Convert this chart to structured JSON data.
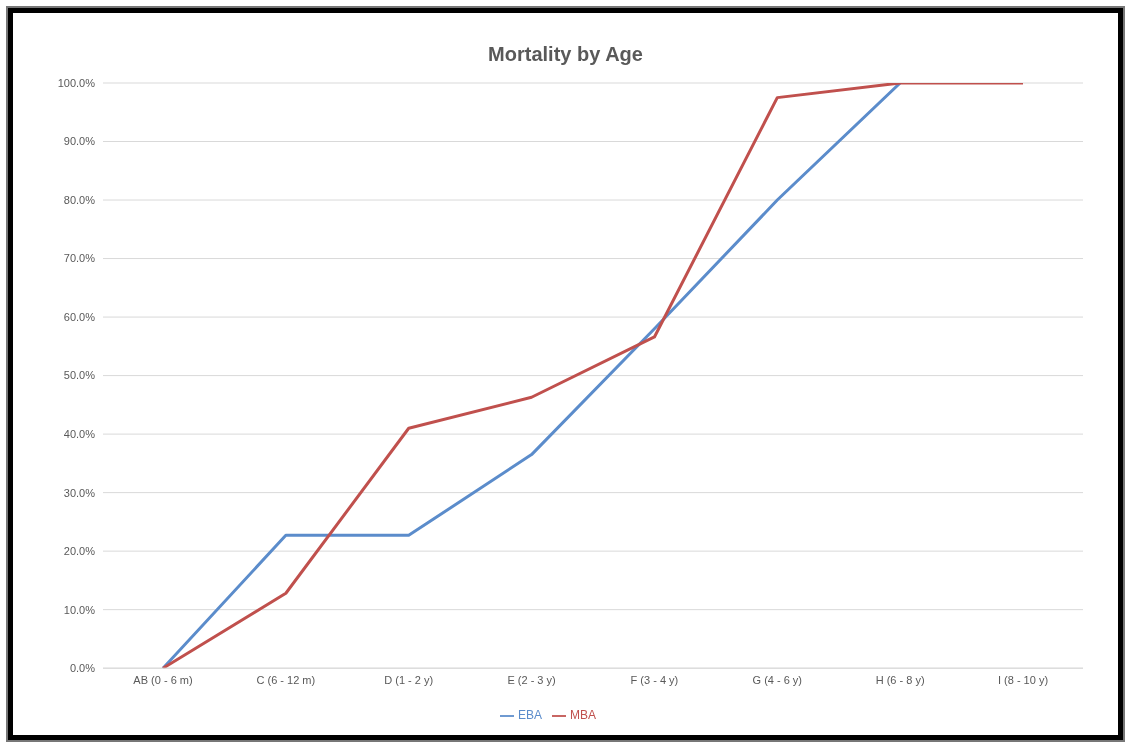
{
  "chart_data": {
    "type": "line",
    "title": "Mortality by Age",
    "categories": [
      "AB (0 - 6 m)",
      "C (6 - 12 m)",
      "D (1 - 2 y)",
      "E (2 - 3 y)",
      "F (3 - 4 y)",
      "G (4 - 6 y)",
      "H (6 - 8 y)",
      "I (8 - 10 y)"
    ],
    "series": [
      {
        "name": "EBA",
        "color": "#5b8ccb",
        "values": [
          0,
          22.7,
          22.7,
          36.5,
          58,
          80,
          100,
          null
        ]
      },
      {
        "name": "MBA",
        "color": "#c0504d",
        "values": [
          0,
          12.8,
          41,
          46.3,
          56.6,
          97.5,
          100,
          100
        ]
      }
    ],
    "ylim": [
      0,
      100
    ],
    "yticks": [
      {
        "value": 0,
        "label": "0.0%"
      },
      {
        "value": 10,
        "label": "10.0%"
      },
      {
        "value": 20,
        "label": "20.0%"
      },
      {
        "value": 30,
        "label": "30.0%"
      },
      {
        "value": 40,
        "label": "40.0%"
      },
      {
        "value": 50,
        "label": "50.0%"
      },
      {
        "value": 60,
        "label": "60.0%"
      },
      {
        "value": 70,
        "label": "70.0%"
      },
      {
        "value": 80,
        "label": "80.0%"
      },
      {
        "value": 90,
        "label": "90.0%"
      },
      {
        "value": 100,
        "label": "100.0%"
      }
    ],
    "grid": "y",
    "legend": "bottom",
    "marker": "none",
    "line_style": "solid"
  }
}
